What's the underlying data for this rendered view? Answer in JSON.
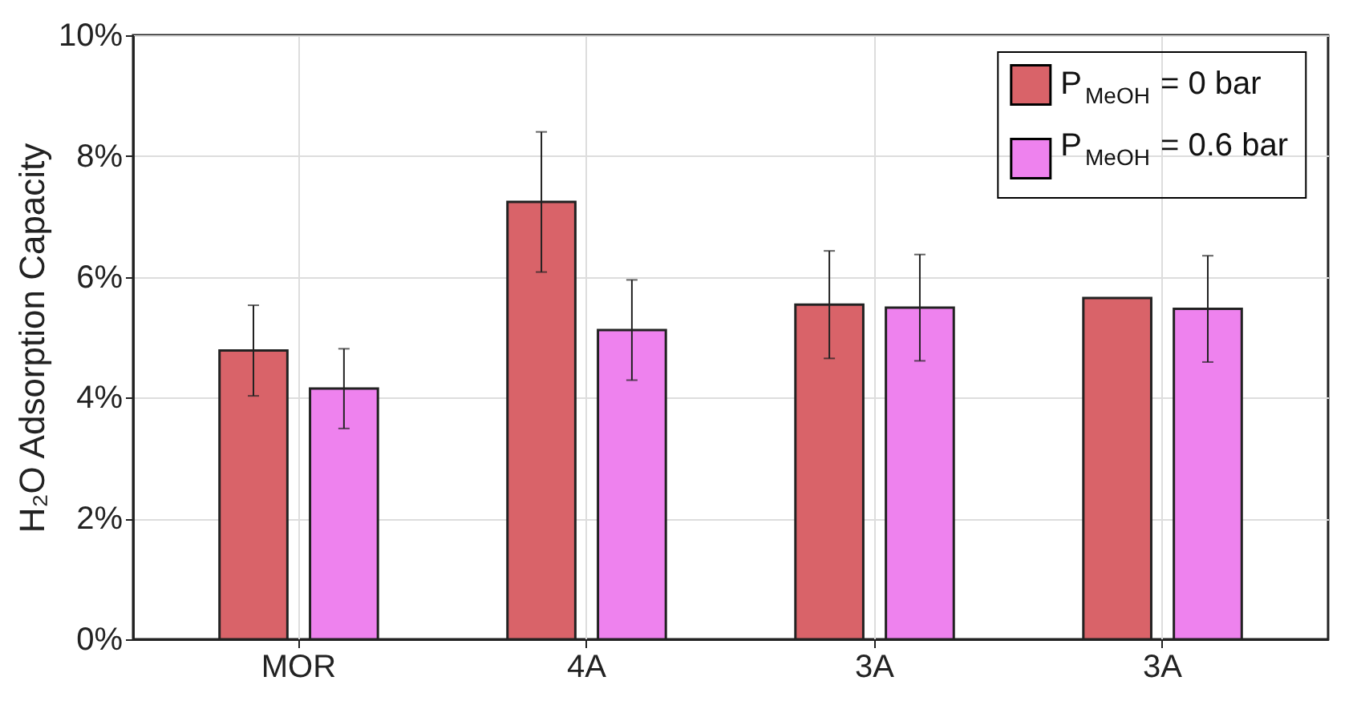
{
  "chart_data": {
    "type": "bar",
    "ylabel": "H₂O Adsorption Capacity",
    "categories": [
      "MOR",
      "4A",
      "3A",
      "3A"
    ],
    "series": [
      {
        "name": "P$_{MeOH}$ = 0 bar",
        "color": "#d96369",
        "values": [
          4.78,
          7.24,
          5.54,
          5.65
        ],
        "errors": [
          0.75,
          1.16,
          0.89,
          null
        ]
      },
      {
        "name": "P$_{MeOH}$ = 0.6 bar",
        "color": "#ee82ee",
        "values": [
          4.15,
          5.12,
          5.49,
          5.47
        ],
        "errors": [
          0.66,
          0.83,
          0.88,
          0.88
        ]
      }
    ],
    "ylim": [
      0,
      10
    ],
    "yticks": [
      {
        "value": 0,
        "label": "0%"
      },
      {
        "value": 2,
        "label": "2%"
      },
      {
        "value": 4,
        "label": "4%"
      },
      {
        "value": 6,
        "label": "6%"
      },
      {
        "value": 8,
        "label": "8%"
      },
      {
        "value": 10,
        "label": "10%"
      }
    ],
    "grid": true,
    "legend": "top right"
  }
}
